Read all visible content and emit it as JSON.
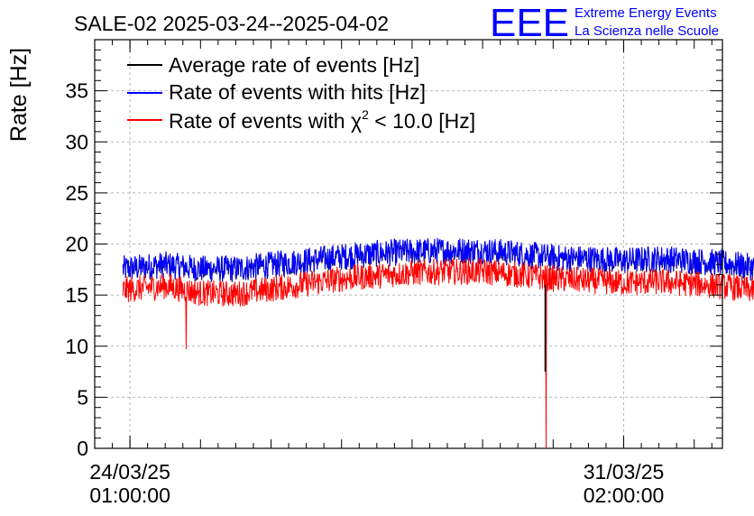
{
  "chart_data": {
    "type": "line",
    "title": "SALE-02 2025-03-24--2025-04-02",
    "xlabel": "",
    "ylabel": "Rate [Hz]",
    "ylim": [
      0,
      40
    ],
    "yticks": [
      0,
      5,
      10,
      15,
      20,
      25,
      30,
      35
    ],
    "xlim_days": [
      -0.5,
      8.4
    ],
    "xticks": [
      {
        "day": 0,
        "date": "24/03/25",
        "time": "01:00:00"
      },
      {
        "day": 7,
        "date": "31/03/25",
        "time": "02:00:00"
      }
    ],
    "data_range_days": [
      -0.1,
      9.0
    ],
    "grid": true,
    "legend_position": "top-left",
    "series": [
      {
        "name": "Average rate of events [Hz]",
        "color": "#000000",
        "approx": "nearly identical to the hits series (hidden beneath it)"
      },
      {
        "name": "Rate of events with hits [Hz]",
        "color": "#0000ff",
        "trend": [
          [
            -0.1,
            17.6
          ],
          [
            0.5,
            18.0
          ],
          [
            1.0,
            17.6
          ],
          [
            1.5,
            17.6
          ],
          [
            2.0,
            18.0
          ],
          [
            2.5,
            18.4
          ],
          [
            3.0,
            18.8
          ],
          [
            3.5,
            19.1
          ],
          [
            4.0,
            19.3
          ],
          [
            4.5,
            19.4
          ],
          [
            5.0,
            19.4
          ],
          [
            5.5,
            19.1
          ],
          [
            6.0,
            18.7
          ],
          [
            6.5,
            18.6
          ],
          [
            7.0,
            18.4
          ],
          [
            7.5,
            18.6
          ],
          [
            8.0,
            18.4
          ],
          [
            8.5,
            18.1
          ],
          [
            9.0,
            17.6
          ]
        ],
        "noise_amplitude": 1.3
      },
      {
        "name": "Rate of events with χ² < 10.0 [Hz]",
        "color": "#ff0000",
        "label_prefix": "Rate of events with ",
        "label_symbol": "χ",
        "label_sup": "2",
        "label_suffix": " < 10.0 [Hz]",
        "trend": [
          [
            -0.1,
            15.5
          ],
          [
            0.5,
            15.9
          ],
          [
            1.0,
            15.2
          ],
          [
            1.5,
            15.1
          ],
          [
            2.0,
            15.6
          ],
          [
            2.5,
            16.1
          ],
          [
            3.0,
            16.6
          ],
          [
            3.5,
            16.9
          ],
          [
            4.0,
            17.2
          ],
          [
            4.5,
            17.3
          ],
          [
            5.0,
            17.3
          ],
          [
            5.5,
            17.0
          ],
          [
            6.0,
            16.6
          ],
          [
            6.5,
            16.4
          ],
          [
            7.0,
            16.2
          ],
          [
            7.5,
            16.3
          ],
          [
            8.0,
            16.1
          ],
          [
            8.5,
            15.8
          ],
          [
            9.0,
            15.3
          ]
        ],
        "noise_amplitude": 1.3,
        "dips": [
          {
            "day": 0.8,
            "value": 9.7
          },
          {
            "day": 5.9,
            "value": 0
          }
        ]
      }
    ]
  },
  "logo": {
    "text": "EEE",
    "line1": "Extreme Energy Events",
    "line2": "La Scienza nelle Scuole",
    "color": "#0000ff"
  }
}
